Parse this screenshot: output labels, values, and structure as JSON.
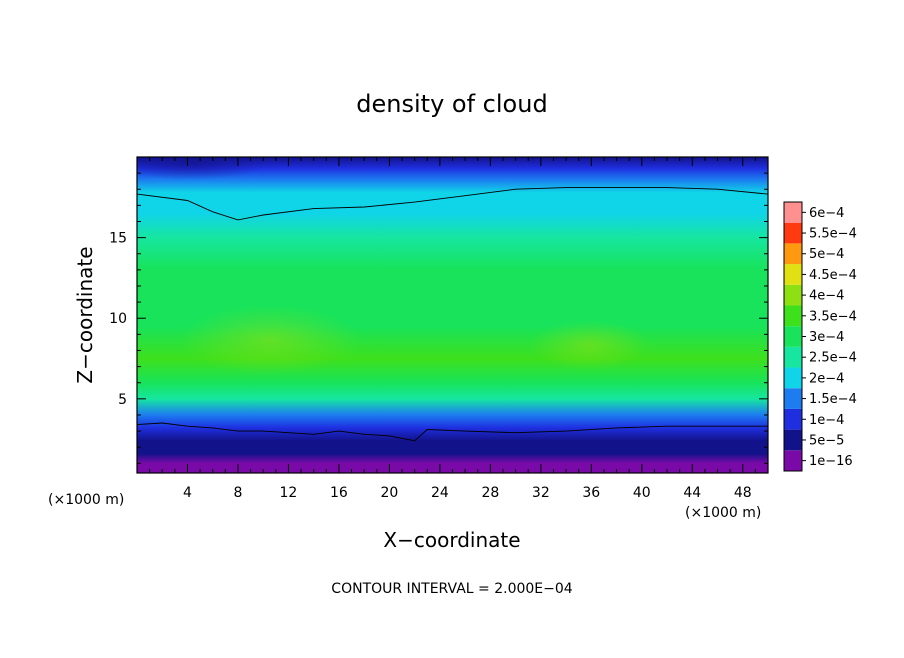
{
  "chart_data": {
    "type": "heatmap",
    "title": "density of cloud",
    "xlabel": "X−coordinate",
    "ylabel": "Z−coordinate",
    "x_unit": "(×1000 m)",
    "y_unit": "(×1000 m)",
    "xlim": [
      0,
      50
    ],
    "ylim": [
      0.4,
      20
    ],
    "x_ticks": [
      4,
      8,
      12,
      16,
      20,
      24,
      28,
      32,
      36,
      40,
      44,
      48
    ],
    "y_ticks": [
      5,
      10,
      15
    ],
    "contour_interval_text": "CONTOUR INTERVAL = 2.000E−04",
    "colorbar": {
      "labels": [
        "1e−16",
        "5e−5",
        "1e−4",
        "1.5e−4",
        "2e−4",
        "2.5e−4",
        "3e−4",
        "3.5e−4",
        "4e−4",
        "4.5e−4",
        "5e−4",
        "5.5e−4",
        "6e−4"
      ],
      "levels": [
        1e-16,
        5e-05,
        0.0001,
        0.00015,
        0.0002,
        0.00025,
        0.0003,
        0.00035,
        0.0004,
        0.00045,
        0.0005,
        0.00055,
        0.0006
      ],
      "colors": [
        "#7a0aa8",
        "#12128a",
        "#1f2fe0",
        "#1c7cf0",
        "#10d4e8",
        "#16e6a0",
        "#18e35a",
        "#3ee01c",
        "#8ee012",
        "#e0e012",
        "#ff9a10",
        "#ff3a10",
        "#ff9090"
      ]
    },
    "contour_lines_m": [
      {
        "level": 0.0001,
        "points": [
          [
            0,
            3.4
          ],
          [
            2,
            3.5
          ],
          [
            4,
            3.3
          ],
          [
            6,
            3.2
          ],
          [
            8,
            3.0
          ],
          [
            10,
            3.0
          ],
          [
            12,
            2.9
          ],
          [
            14,
            2.8
          ],
          [
            16,
            3.0
          ],
          [
            18,
            2.8
          ],
          [
            20,
            2.7
          ],
          [
            22,
            2.4
          ],
          [
            23,
            3.1
          ],
          [
            26,
            3.0
          ],
          [
            30,
            2.9
          ],
          [
            34,
            3.0
          ],
          [
            38,
            3.2
          ],
          [
            42,
            3.3
          ],
          [
            46,
            3.3
          ],
          [
            50,
            3.3
          ]
        ]
      },
      {
        "level": 0.0002,
        "points": [
          [
            0,
            17.7
          ],
          [
            4,
            17.3
          ],
          [
            6,
            16.6
          ],
          [
            8,
            16.1
          ],
          [
            10,
            16.4
          ],
          [
            14,
            16.8
          ],
          [
            18,
            16.9
          ],
          [
            22,
            17.2
          ],
          [
            26,
            17.6
          ],
          [
            30,
            18.0
          ],
          [
            34,
            18.1
          ],
          [
            38,
            18.1
          ],
          [
            42,
            18.1
          ],
          [
            46,
            18.0
          ],
          [
            50,
            17.7
          ]
        ]
      }
    ],
    "field_profile": [
      {
        "z": 0.4,
        "value": 1e-05
      },
      {
        "z": 1.0,
        "value": 3e-05
      },
      {
        "z": 1.6,
        "value": 6e-05
      },
      {
        "z": 2.4,
        "value": 9e-05
      },
      {
        "z": 3.2,
        "value": 0.0001
      },
      {
        "z": 4.0,
        "value": 0.00018
      },
      {
        "z": 5.0,
        "value": 0.00026
      },
      {
        "z": 6.0,
        "value": 0.00031
      },
      {
        "z": 7.5,
        "value": 0.00035
      },
      {
        "z": 9.5,
        "value": 0.00034
      },
      {
        "z": 11.0,
        "value": 0.00033
      },
      {
        "z": 13.0,
        "value": 0.0003
      },
      {
        "z": 15.0,
        "value": 0.00027
      },
      {
        "z": 16.5,
        "value": 0.00024
      },
      {
        "z": 17.8,
        "value": 0.0002
      },
      {
        "z": 18.6,
        "value": 0.00015
      },
      {
        "z": 19.3,
        "value": 0.00012
      },
      {
        "z": 20.0,
        "value": 8e-05
      }
    ]
  }
}
